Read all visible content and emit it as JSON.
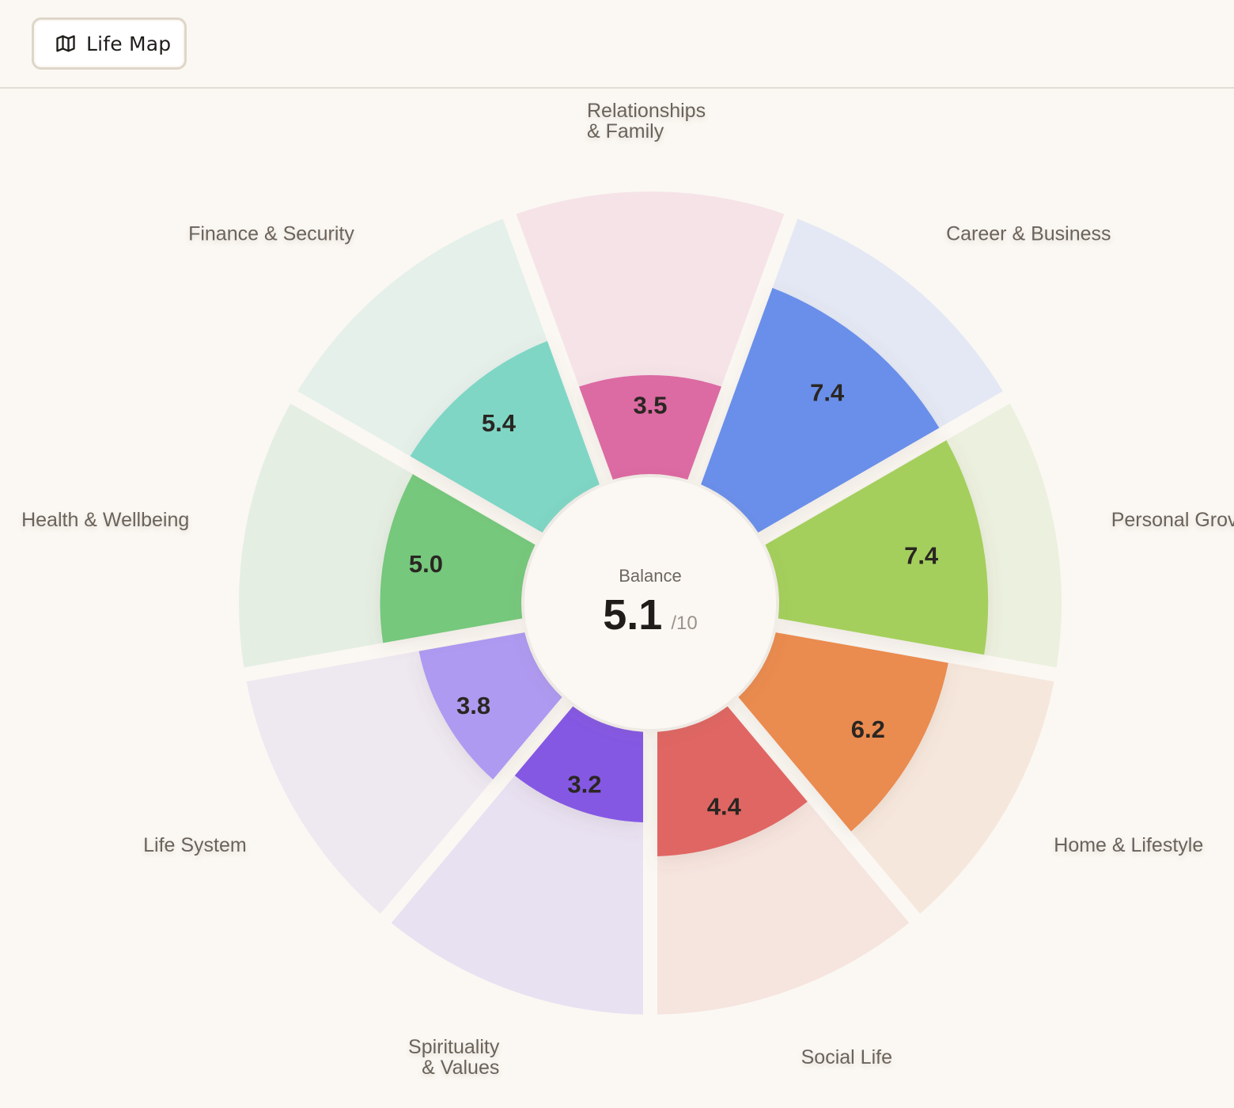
{
  "header": {
    "button_label": "Life Map",
    "button_icon": "map-icon"
  },
  "chart_data": {
    "type": "polar-bar",
    "scale_max": 10,
    "center": {
      "label": "Balance",
      "value": "5.1",
      "suffix": "/10"
    },
    "categories": [
      {
        "name": "Relationships & Family",
        "label_lines": [
          "Relationships",
          "& Family"
        ],
        "value": 3.5,
        "value_text": "3.5",
        "color": "#dc6ba3",
        "bg_color": "#f5e3e8"
      },
      {
        "name": "Career & Business",
        "label_lines": [
          "Career & Business"
        ],
        "value": 7.4,
        "value_text": "7.4",
        "color": "#6b8fea",
        "bg_color": "#e3e8f4"
      },
      {
        "name": "Personal Growth",
        "label_lines": [
          "Personal Grov"
        ],
        "value": 7.4,
        "value_text": "7.4",
        "color": "#a4cf5c",
        "bg_color": "#ecf0de"
      },
      {
        "name": "Home & Lifestyle",
        "label_lines": [
          "Home & Lifestyle"
        ],
        "value": 6.2,
        "value_text": "6.2",
        "color": "#ea8b50",
        "bg_color": "#f6e7dc"
      },
      {
        "name": "Social Life",
        "label_lines": [
          "Social Life"
        ],
        "value": 4.4,
        "value_text": "4.4",
        "color": "#e06664",
        "bg_color": "#f6e4de"
      },
      {
        "name": "Spirituality & Values",
        "label_lines": [
          "Spirituality",
          "& Values"
        ],
        "value": 3.2,
        "value_text": "3.2",
        "color": "#8559e4",
        "bg_color": "#e8e1f1"
      },
      {
        "name": "Life System",
        "label_lines": [
          "Life System"
        ],
        "value": 3.8,
        "value_text": "3.8",
        "color": "#ae9af1",
        "bg_color": "#eee8f1"
      },
      {
        "name": "Health & Wellbeing",
        "label_lines": [
          "Health & Wellbeing"
        ],
        "value": 5.0,
        "value_text": "5.0",
        "color": "#76c87c",
        "bg_color": "#e5eee3"
      },
      {
        "name": "Finance & Security",
        "label_lines": [
          "Finance & Security"
        ],
        "value": 5.4,
        "value_text": "5.4",
        "color": "#7fd6c5",
        "bg_color": "#e5f0eb"
      }
    ]
  }
}
